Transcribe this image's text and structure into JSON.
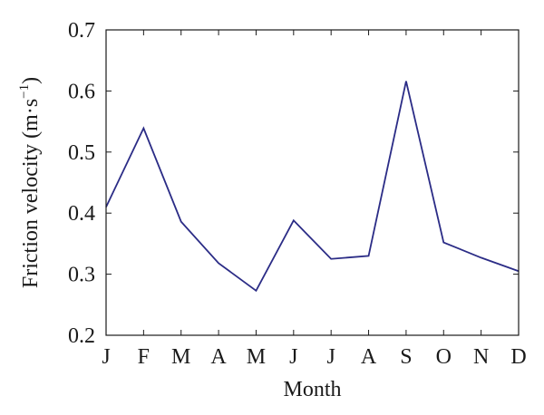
{
  "chart_data": {
    "type": "line",
    "title": "",
    "xlabel": "Month",
    "ylabel": "Friction velocity (m·s",
    "ylabel_superscript": "−1",
    "ylabel_close": ")",
    "categories": [
      "J",
      "F",
      "M",
      "A",
      "M",
      "J",
      "J",
      "A",
      "S",
      "O",
      "N",
      "D"
    ],
    "series": [
      {
        "values": [
          0.41,
          0.539,
          0.386,
          0.318,
          0.273,
          0.388,
          0.325,
          0.33,
          0.616,
          0.352,
          0.327,
          0.305
        ],
        "color": "#2b2c86"
      }
    ],
    "ylim": [
      0.2,
      0.7
    ],
    "yticks": [
      0.2,
      0.3,
      0.4,
      0.5,
      0.6,
      0.7
    ],
    "ytick_labels": [
      "0.2",
      "0.3",
      "0.4",
      "0.5",
      "0.6",
      "0.7"
    ],
    "grid": false
  }
}
